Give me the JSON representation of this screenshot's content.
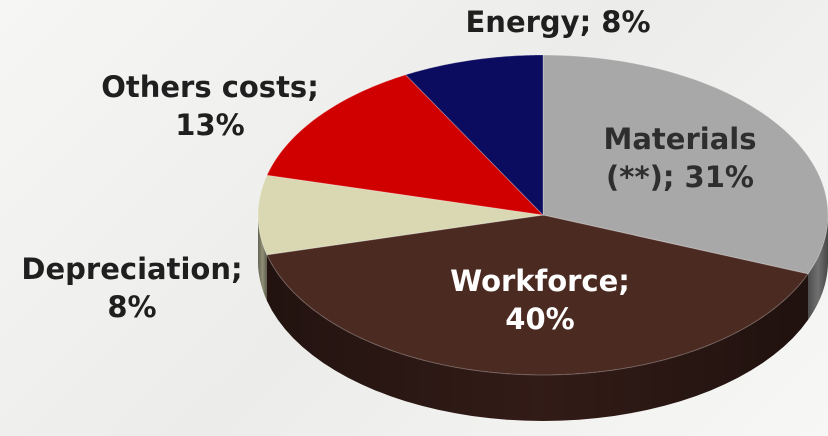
{
  "chart_data": {
    "type": "pie",
    "values": [
      31,
      40,
      8,
      13,
      8
    ],
    "value_labels": [
      "Materials\n(**); 31%",
      "Workforce;\n40%",
      "Depreciation;\n8%",
      "Others costs;\n13%",
      "Energy; 8%"
    ],
    "colors": [
      "#a8a8a8",
      "#4b2a22",
      "#dad8b2",
      "#d10000",
      "#0b0b60"
    ]
  }
}
